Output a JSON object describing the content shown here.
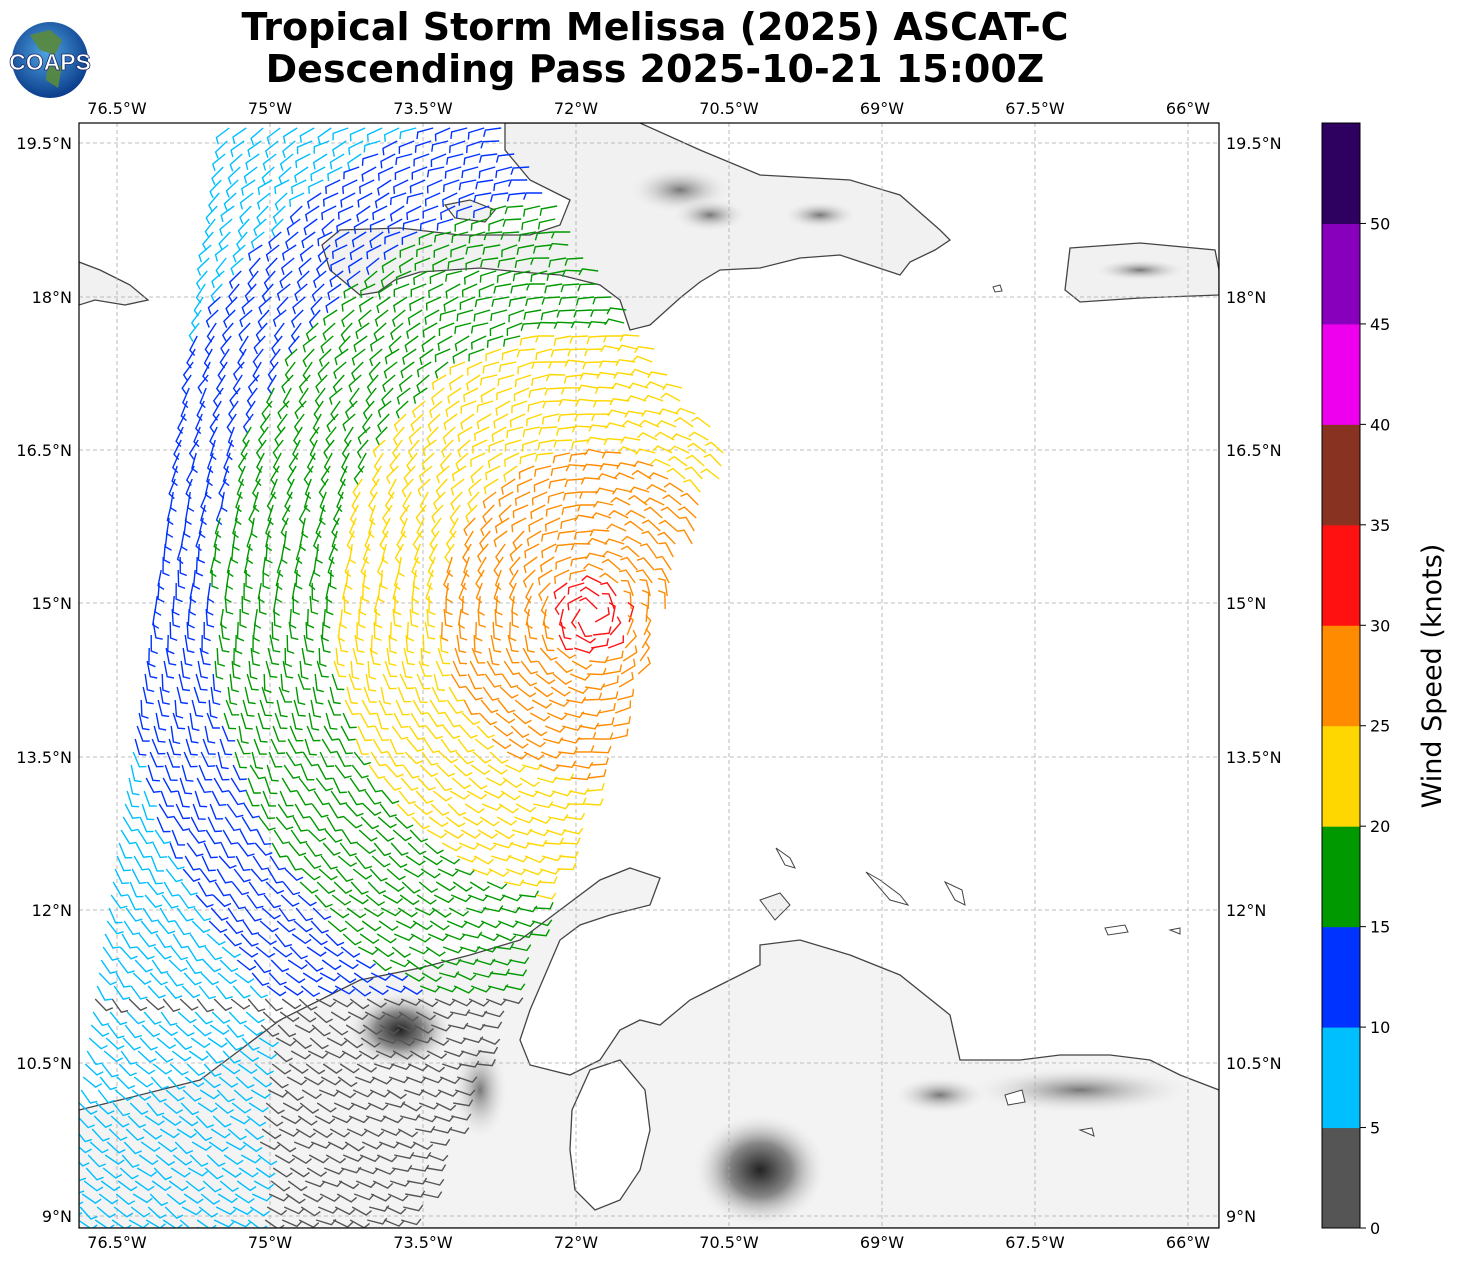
{
  "title_line1": "Tropical Storm Melissa (2025) ASCAT-C",
  "title_line2": "Descending Pass 2025-10-21 15:00Z",
  "logo_text": "COAPS",
  "lon_ticks": [
    "76.5°W",
    "75°W",
    "73.5°W",
    "72°W",
    "70.5°W",
    "69°W",
    "67.5°W",
    "66°W"
  ],
  "lat_ticks": [
    "19.5°N",
    "18°N",
    "16.5°N",
    "15°N",
    "13.5°N",
    "12°N",
    "10.5°N",
    "9°N"
  ],
  "colorbar": {
    "label": "Wind Speed (knots)",
    "ticks": [
      "0",
      "5",
      "10",
      "15",
      "20",
      "25",
      "30",
      "35",
      "40",
      "45",
      "50"
    ],
    "colors": [
      "#555555",
      "#00bfff",
      "#0033ff",
      "#009900",
      "#ffd700",
      "#ff8c00",
      "#ff1111",
      "#883322",
      "#ee00ee",
      "#8800bb",
      "#2e0060"
    ]
  },
  "map_extent": {
    "lon_min": -76.9,
    "lon_max": -65.7,
    "lat_min": 8.9,
    "lat_max": 19.7
  }
}
